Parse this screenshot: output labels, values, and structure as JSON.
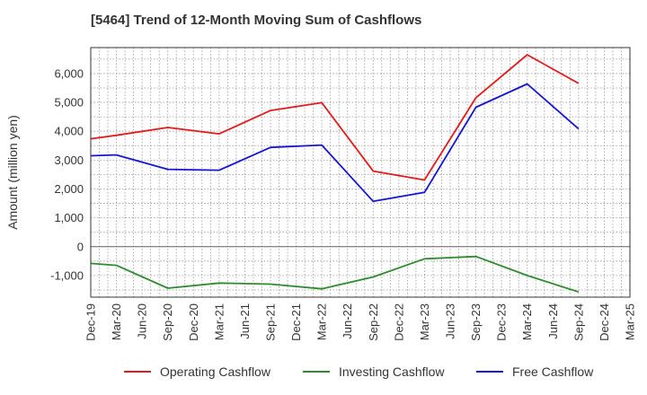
{
  "chart_data": {
    "type": "line",
    "title": "[5464]  Trend of 12-Month Moving Sum of Cashflows",
    "xlabel": "",
    "ylabel": "Amount (million yen)",
    "categories": [
      "Dec-19",
      "Mar-20",
      "Jun-20",
      "Sep-20",
      "Dec-20",
      "Mar-21",
      "Jun-21",
      "Sep-21",
      "Dec-21",
      "Mar-22",
      "Jun-22",
      "Sep-22",
      "Dec-22",
      "Mar-23",
      "Jun-23",
      "Sep-23",
      "Dec-23",
      "Mar-24",
      "Jun-24",
      "Sep-24",
      "Dec-24",
      "Mar-25"
    ],
    "ylim": [
      -1750,
      6900
    ],
    "yticks": [
      -1000,
      0,
      1000,
      2000,
      3000,
      4000,
      5000,
      6000
    ],
    "ytick_labels": [
      "-1,000",
      "0",
      "1,000",
      "2,000",
      "3,000",
      "4,000",
      "5,000",
      "6,000"
    ],
    "grid": true,
    "legend_position": "bottom",
    "series": [
      {
        "name": "Operating Cashflow",
        "color": "#e41a1c",
        "points": [
          [
            "Dec-19",
            3740
          ],
          [
            "Mar-20",
            3860
          ],
          [
            "Sep-20",
            4130
          ],
          [
            "Mar-21",
            3910
          ],
          [
            "Sep-21",
            4720
          ],
          [
            "Mar-22",
            4990
          ],
          [
            "Sep-22",
            2620
          ],
          [
            "Mar-23",
            2310
          ],
          [
            "Sep-23",
            5160
          ],
          [
            "Mar-24",
            6650
          ],
          [
            "Sep-24",
            5660
          ]
        ]
      },
      {
        "name": "Investing Cashflow",
        "color": "#2e8b2e",
        "points": [
          [
            "Dec-19",
            -580
          ],
          [
            "Mar-20",
            -650
          ],
          [
            "Sep-20",
            -1440
          ],
          [
            "Mar-21",
            -1260
          ],
          [
            "Sep-21",
            -1300
          ],
          [
            "Mar-22",
            -1460
          ],
          [
            "Sep-22",
            -1050
          ],
          [
            "Mar-23",
            -420
          ],
          [
            "Sep-23",
            -340
          ],
          [
            "Mar-24",
            -1000
          ],
          [
            "Sep-24",
            -1570
          ]
        ]
      },
      {
        "name": "Free Cashflow",
        "color": "#1515d8",
        "points": [
          [
            "Dec-19",
            3150
          ],
          [
            "Mar-20",
            3180
          ],
          [
            "Sep-20",
            2680
          ],
          [
            "Mar-21",
            2650
          ],
          [
            "Sep-21",
            3440
          ],
          [
            "Mar-22",
            3520
          ],
          [
            "Sep-22",
            1570
          ],
          [
            "Mar-23",
            1880
          ],
          [
            "Sep-23",
            4830
          ],
          [
            "Mar-24",
            5640
          ],
          [
            "Sep-24",
            4080
          ]
        ]
      }
    ]
  }
}
